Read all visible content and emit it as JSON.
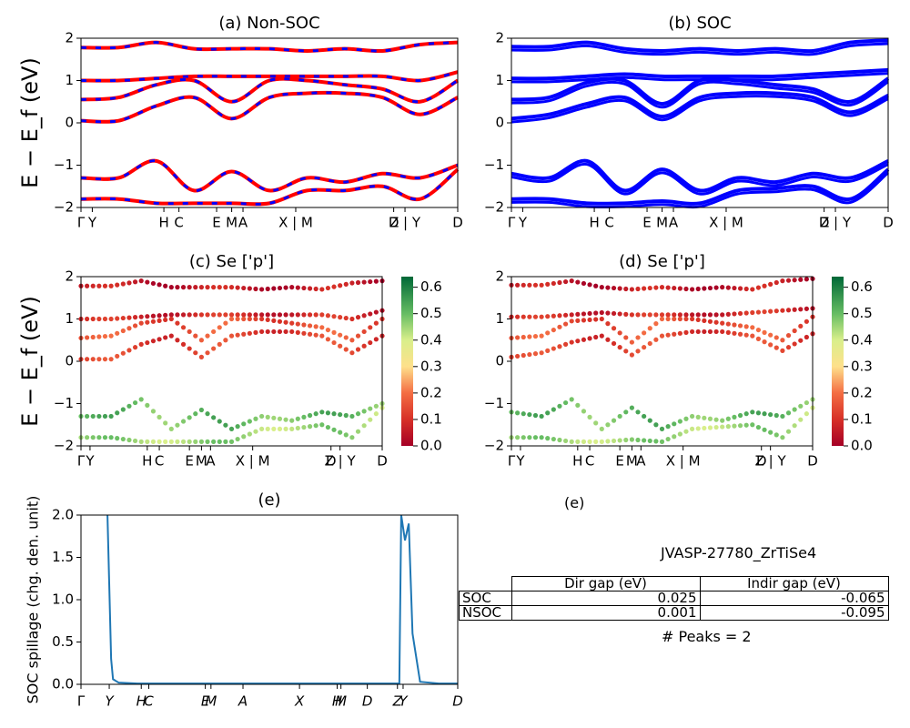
{
  "figure": {
    "jid_label": "JVASP-27780_ZrTiSe4",
    "peaks_label": "# Peaks = 2",
    "table": {
      "headers": [
        "Dir gap (eV)",
        "Indir gap (eV)"
      ],
      "rows": [
        {
          "label": "SOC",
          "dir": "0.025",
          "indir": "-0.065"
        },
        {
          "label": "NSOC",
          "dir": "0.001",
          "indir": "-0.095"
        }
      ]
    }
  },
  "chart_data": [
    {
      "id": "a",
      "type": "line",
      "title": "(a) Non-SOC",
      "ylabel": "E − E_f (eV)",
      "ylim": [
        -2,
        2
      ],
      "yticks": [
        "2",
        "1",
        "0",
        "−1",
        "−2"
      ],
      "kpath_labels": [
        "Γ",
        "Y",
        "H",
        "C",
        "E",
        "M",
        "A",
        "X | M",
        "D",
        "Z | Y",
        "D"
      ],
      "x": [
        0,
        0.1,
        0.2,
        0.3,
        0.4,
        0.5,
        0.6,
        0.7,
        0.8,
        0.9,
        1.0
      ],
      "colors": {
        "dn": "#0000ff",
        "up": "#ff0000"
      },
      "series": [
        {
          "values": [
            1.78,
            1.78,
            1.9,
            1.75,
            1.75,
            1.75,
            1.7,
            1.75,
            1.7,
            1.85,
            1.9
          ]
        },
        {
          "values": [
            1.0,
            1.0,
            1.05,
            1.1,
            1.1,
            1.1,
            1.1,
            1.1,
            1.1,
            1.0,
            1.2
          ]
        },
        {
          "values": [
            0.55,
            0.6,
            0.9,
            1.0,
            0.5,
            1.0,
            1.0,
            0.9,
            0.8,
            0.5,
            1.0
          ]
        },
        {
          "values": [
            0.05,
            0.05,
            0.4,
            0.6,
            0.1,
            0.6,
            0.7,
            0.7,
            0.6,
            0.2,
            0.6
          ]
        },
        {
          "values": [
            -1.3,
            -1.3,
            -0.9,
            -1.6,
            -1.15,
            -1.6,
            -1.3,
            -1.4,
            -1.2,
            -1.3,
            -1.0
          ]
        },
        {
          "values": [
            -1.8,
            -1.8,
            -1.9,
            -1.9,
            -1.9,
            -1.9,
            -1.6,
            -1.6,
            -1.5,
            -1.8,
            -1.1
          ]
        }
      ]
    },
    {
      "id": "b",
      "type": "line",
      "title": "(b) SOC",
      "ylabel": "",
      "ylim": [
        -2,
        2
      ],
      "yticks": [
        "2",
        "1",
        "0",
        "−1",
        "−2"
      ],
      "kpath_labels": [
        "Γ",
        "Y",
        "H",
        "C",
        "E",
        "M",
        "A",
        "X | M",
        "D",
        "Z | Y",
        "D"
      ],
      "x": [
        0,
        0.1,
        0.2,
        0.3,
        0.4,
        0.5,
        0.6,
        0.7,
        0.8,
        0.9,
        1.0
      ],
      "colors": {
        "soc": "#0000ff"
      },
      "series": [
        {
          "values": [
            1.8,
            1.8,
            1.9,
            1.75,
            1.7,
            1.75,
            1.7,
            1.75,
            1.7,
            1.9,
            1.95
          ]
        },
        {
          "values": [
            1.05,
            1.05,
            1.1,
            1.15,
            1.1,
            1.1,
            1.1,
            1.1,
            1.15,
            1.2,
            1.25
          ]
        },
        {
          "values": [
            0.55,
            0.6,
            0.95,
            1.0,
            0.45,
            1.0,
            1.0,
            0.9,
            0.8,
            0.5,
            1.05
          ]
        },
        {
          "values": [
            0.1,
            0.2,
            0.45,
            0.6,
            0.15,
            0.6,
            0.7,
            0.7,
            0.6,
            0.25,
            0.65
          ]
        },
        {
          "values": [
            -1.2,
            -1.3,
            -0.9,
            -1.6,
            -1.1,
            -1.6,
            -1.3,
            -1.4,
            -1.2,
            -1.3,
            -0.9
          ]
        },
        {
          "values": [
            -1.8,
            -1.8,
            -1.9,
            -1.9,
            -1.85,
            -1.9,
            -1.6,
            -1.55,
            -1.5,
            -1.8,
            -1.1
          ]
        }
      ]
    },
    {
      "id": "c",
      "type": "scatter",
      "title": "(c)  Se ['p']",
      "ylabel": "E − E_f (eV)",
      "ylim": [
        -2,
        2
      ],
      "yticks": [
        "2",
        "1",
        "0",
        "−1",
        "−2"
      ],
      "kpath_labels": [
        "Γ",
        "Y",
        "H",
        "C",
        "E",
        "M",
        "A",
        "X | M",
        "D",
        "Z | Y",
        "D"
      ],
      "colorbar_ticks": [
        "0.6",
        "0.5",
        "0.4",
        "0.3",
        "0.2",
        "0.1",
        "0.0"
      ],
      "x": [
        0,
        0.1,
        0.2,
        0.3,
        0.4,
        0.5,
        0.6,
        0.7,
        0.8,
        0.9,
        1.0
      ],
      "series": [
        {
          "weight": 0.05,
          "values": [
            1.78,
            1.78,
            1.9,
            1.75,
            1.75,
            1.75,
            1.7,
            1.75,
            1.7,
            1.85,
            1.9
          ]
        },
        {
          "weight": 0.08,
          "values": [
            1.0,
            1.0,
            1.05,
            1.1,
            1.1,
            1.1,
            1.1,
            1.1,
            1.1,
            1.0,
            1.2
          ]
        },
        {
          "weight": 0.15,
          "values": [
            0.55,
            0.6,
            0.9,
            1.0,
            0.5,
            1.0,
            1.0,
            0.9,
            0.8,
            0.5,
            1.0
          ]
        },
        {
          "weight": 0.12,
          "values": [
            0.05,
            0.05,
            0.4,
            0.6,
            0.1,
            0.6,
            0.7,
            0.7,
            0.6,
            0.2,
            0.6
          ]
        },
        {
          "weight": 0.5,
          "values": [
            -1.3,
            -1.3,
            -0.9,
            -1.6,
            -1.15,
            -1.6,
            -1.3,
            -1.4,
            -1.2,
            -1.3,
            -1.0
          ]
        },
        {
          "weight": 0.45,
          "values": [
            -1.8,
            -1.8,
            -1.9,
            -1.9,
            -1.9,
            -1.9,
            -1.6,
            -1.6,
            -1.5,
            -1.8,
            -1.1
          ]
        }
      ]
    },
    {
      "id": "d",
      "type": "scatter",
      "title": "(d) Se ['p']",
      "ylabel": "",
      "ylim": [
        -2,
        2
      ],
      "yticks": [
        "2",
        "1",
        "0",
        "−1",
        "−2"
      ],
      "kpath_labels": [
        "Γ",
        "Y",
        "H",
        "C",
        "E",
        "M",
        "A",
        "X | M",
        "D",
        "Z | Y",
        "D"
      ],
      "colorbar_ticks": [
        "0.6",
        "0.5",
        "0.4",
        "0.3",
        "0.2",
        "0.1",
        "0.0"
      ],
      "x": [
        0,
        0.1,
        0.2,
        0.3,
        0.4,
        0.5,
        0.6,
        0.7,
        0.8,
        0.9,
        1.0
      ],
      "series": [
        {
          "weight": 0.05,
          "values": [
            1.8,
            1.8,
            1.9,
            1.75,
            1.7,
            1.75,
            1.7,
            1.75,
            1.7,
            1.9,
            1.95
          ]
        },
        {
          "weight": 0.08,
          "values": [
            1.05,
            1.05,
            1.1,
            1.15,
            1.1,
            1.1,
            1.1,
            1.1,
            1.15,
            1.2,
            1.25
          ]
        },
        {
          "weight": 0.15,
          "values": [
            0.55,
            0.6,
            0.95,
            1.0,
            0.45,
            1.0,
            1.0,
            0.9,
            0.8,
            0.5,
            1.05
          ]
        },
        {
          "weight": 0.12,
          "values": [
            0.1,
            0.2,
            0.45,
            0.6,
            0.15,
            0.6,
            0.7,
            0.7,
            0.6,
            0.25,
            0.65
          ]
        },
        {
          "weight": 0.5,
          "values": [
            -1.2,
            -1.3,
            -0.9,
            -1.6,
            -1.1,
            -1.6,
            -1.3,
            -1.4,
            -1.2,
            -1.3,
            -0.9
          ]
        },
        {
          "weight": 0.45,
          "values": [
            -1.8,
            -1.8,
            -1.9,
            -1.9,
            -1.85,
            -1.9,
            -1.6,
            -1.55,
            -1.5,
            -1.8,
            -1.1
          ]
        }
      ]
    },
    {
      "id": "e",
      "type": "line",
      "title": "(e)",
      "ylabel": "SOC spillage (chg. den. unit)",
      "ylim": [
        0,
        2.0
      ],
      "yticks": [
        "2.0",
        "1.5",
        "1.0",
        "0.5",
        "0.0"
      ],
      "xtick_labels": [
        "Γ",
        "Y",
        "H",
        "C",
        "E",
        "M",
        "A",
        "X",
        "H",
        "M",
        "D",
        "Z",
        "Y",
        "D"
      ],
      "xtick_positions": [
        0,
        0.075,
        0.16,
        0.18,
        0.33,
        0.345,
        0.43,
        0.58,
        0.68,
        0.69,
        0.76,
        0.84,
        0.855,
        1.0
      ],
      "color": "#1f77b4",
      "x": [
        0,
        0.07,
        0.08,
        0.085,
        0.1,
        0.15,
        0.3,
        0.5,
        0.7,
        0.8,
        0.845,
        0.85,
        0.86,
        0.87,
        0.88,
        0.9,
        0.95,
        1.0
      ],
      "values": [
        2.2,
        2.2,
        0.3,
        0.06,
        0.02,
        0.01,
        0.01,
        0.01,
        0.01,
        0.01,
        0.01,
        2.0,
        1.7,
        1.9,
        0.6,
        0.03,
        0.01,
        0.01
      ]
    }
  ]
}
